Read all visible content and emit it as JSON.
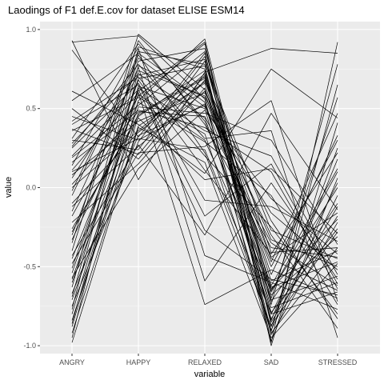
{
  "chart_data": {
    "type": "line",
    "title": "Laodings of F1 def.E.cov for dataset ELISE ESM14",
    "xlabel": "variable",
    "ylabel": "value",
    "categories": [
      "ANGRY",
      "HAPPY",
      "RELAXED",
      "SAD",
      "STRESSED"
    ],
    "ylim": [
      -1.05,
      1.05
    ],
    "yticks": [
      1.0,
      0.5,
      0.0,
      -0.5,
      -1.0
    ],
    "ytick_labels": [
      "1.0",
      "0.5",
      "0.0",
      "-0.5",
      "-1.0"
    ],
    "grid": true,
    "legend": "none",
    "line_color": "#000000",
    "panel_color": "#ebebeb",
    "grid_color": "#ffffff",
    "series": [
      {
        "values": [
          0.93,
          0.05,
          0.73,
          0.88,
          0.85
        ]
      },
      {
        "values": [
          0.92,
          0.96,
          0.56,
          -0.98,
          0.92
        ]
      },
      {
        "values": [
          0.87,
          0.32,
          0.85,
          -0.74,
          0.78
        ]
      },
      {
        "values": [
          0.61,
          0.4,
          0.09,
          0.75,
          0.44
        ]
      },
      {
        "values": [
          0.45,
          0.3,
          0.53,
          -0.8,
          0.03
        ]
      },
      {
        "values": [
          0.4,
          0.65,
          -0.18,
          0.15,
          -0.61
        ]
      },
      {
        "values": [
          0.37,
          0.21,
          0.71,
          -0.63,
          -0.47
        ]
      },
      {
        "values": [
          0.31,
          0.91,
          0.42,
          -0.64,
          -0.2
        ]
      },
      {
        "values": [
          0.26,
          0.78,
          0.31,
          0.36,
          -0.95
        ]
      },
      {
        "values": [
          0.19,
          0.52,
          0.86,
          -0.97,
          0.06
        ]
      },
      {
        "values": [
          0.11,
          0.6,
          -0.74,
          -0.52,
          -0.7
        ]
      },
      {
        "values": [
          0.06,
          0.71,
          0.81,
          -0.41,
          -0.38
        ]
      },
      {
        "values": [
          -0.02,
          0.84,
          0.22,
          -0.88,
          0.25
        ]
      },
      {
        "values": [
          -0.1,
          0.35,
          0.67,
          -0.21,
          -0.83
        ]
      },
      {
        "values": [
          -0.18,
          0.58,
          0.91,
          -1.0,
          0.41
        ]
      },
      {
        "values": [
          -0.26,
          0.44,
          0.05,
          0.12,
          -0.29
        ]
      },
      {
        "values": [
          -0.35,
          0.97,
          0.62,
          -0.45,
          -0.65
        ]
      },
      {
        "values": [
          -0.43,
          0.27,
          -0.3,
          0.47,
          -0.14
        ]
      },
      {
        "values": [
          -0.51,
          0.69,
          0.77,
          -0.91,
          0.65
        ]
      },
      {
        "values": [
          -0.57,
          0.12,
          0.49,
          -0.07,
          -0.42
        ]
      },
      {
        "values": [
          -0.63,
          0.88,
          -0.43,
          -0.6,
          -0.77
        ]
      },
      {
        "values": [
          -0.71,
          0.47,
          0.7,
          -0.84,
          0.18
        ]
      },
      {
        "values": [
          -0.8,
          0.63,
          0.36,
          0.2,
          -0.55
        ]
      },
      {
        "values": [
          -0.88,
          0.55,
          0.94,
          -0.72,
          -0.1
        ]
      },
      {
        "values": [
          -0.95,
          0.74,
          0.58,
          -0.3,
          -0.89
        ]
      },
      {
        "values": [
          -0.98,
          0.38,
          0.16,
          -0.95,
          -0.48
        ]
      },
      {
        "values": [
          0.5,
          0.18,
          0.68,
          -0.55,
          0.33
        ]
      },
      {
        "values": [
          0.02,
          0.48,
          0.45,
          -0.35,
          -0.62
        ]
      },
      {
        "values": [
          -0.3,
          0.8,
          0.88,
          -0.66,
          0.1
        ]
      },
      {
        "values": [
          0.25,
          0.66,
          -0.08,
          -0.12,
          -0.34
        ]
      },
      {
        "values": [
          -0.48,
          0.22,
          0.26,
          0.55,
          -0.72
        ]
      },
      {
        "values": [
          0.14,
          0.89,
          0.75,
          -0.79,
          -0.26
        ]
      },
      {
        "values": [
          -0.67,
          0.33,
          0.52,
          -0.47,
          0.47
        ]
      },
      {
        "values": [
          0.36,
          0.57,
          0.34,
          -0.9,
          -0.05
        ]
      },
      {
        "values": [
          -0.15,
          0.76,
          -0.59,
          0.03,
          -0.58
        ]
      },
      {
        "values": [
          0.08,
          0.42,
          0.6,
          -0.62,
          0.12
        ]
      },
      {
        "values": [
          -0.4,
          0.93,
          0.4,
          -0.38,
          -0.44
        ]
      },
      {
        "values": [
          -0.75,
          0.29,
          0.83,
          -0.85,
          -0.18
        ]
      },
      {
        "values": [
          0.42,
          0.7,
          0.2,
          -0.25,
          -0.8
        ]
      },
      {
        "values": [
          -0.22,
          0.15,
          0.63,
          -0.7,
          0.57
        ]
      },
      {
        "values": [
          -0.6,
          0.51,
          0.47,
          0.3,
          -0.36
        ]
      },
      {
        "values": [
          0.2,
          0.62,
          -0.27,
          -0.58,
          -0.68
        ]
      },
      {
        "values": [
          -0.84,
          0.45,
          0.74,
          -0.93,
          -0.22
        ]
      },
      {
        "values": [
          -0.05,
          0.82,
          0.51,
          -0.16,
          -0.52
        ]
      },
      {
        "values": [
          0.3,
          0.24,
          0.8,
          -0.68,
          -0.31
        ]
      },
      {
        "values": [
          -0.54,
          0.68,
          0.11,
          -0.42,
          0.22
        ]
      },
      {
        "values": [
          -0.92,
          0.39,
          0.66,
          -0.76,
          -0.6
        ]
      },
      {
        "values": [
          0.55,
          0.85,
          0.54,
          -0.83,
          -0.12
        ]
      },
      {
        "values": [
          -0.33,
          0.54,
          0.29,
          -0.05,
          -0.74
        ]
      },
      {
        "values": [
          0.0,
          0.36,
          0.72,
          -0.59,
          -0.4
        ]
      },
      {
        "values": [
          -0.69,
          0.77,
          0.57,
          -0.5,
          0.3
        ]
      },
      {
        "values": [
          0.16,
          0.49,
          0.38,
          0.1,
          -0.64
        ]
      },
      {
        "values": [
          -0.45,
          0.61,
          0.92,
          -0.87,
          -0.28
        ]
      },
      {
        "values": [
          -0.12,
          0.26,
          0.61,
          -0.33,
          -0.5
        ]
      },
      {
        "values": [
          0.28,
          0.72,
          0.44,
          -0.71,
          -0.56
        ]
      },
      {
        "values": [
          -0.58,
          0.59,
          0.3,
          -0.65,
          0.0
        ]
      },
      {
        "values": [
          -0.77,
          0.86,
          0.78,
          -0.27,
          -0.45
        ]
      },
      {
        "values": [
          0.1,
          0.31,
          0.24,
          -0.8,
          -0.66
        ]
      },
      {
        "values": [
          -0.28,
          0.46,
          0.69,
          -0.44,
          -0.16
        ]
      },
      {
        "values": [
          -0.86,
          0.64,
          0.5,
          -0.92,
          -0.38
        ]
      }
    ]
  }
}
